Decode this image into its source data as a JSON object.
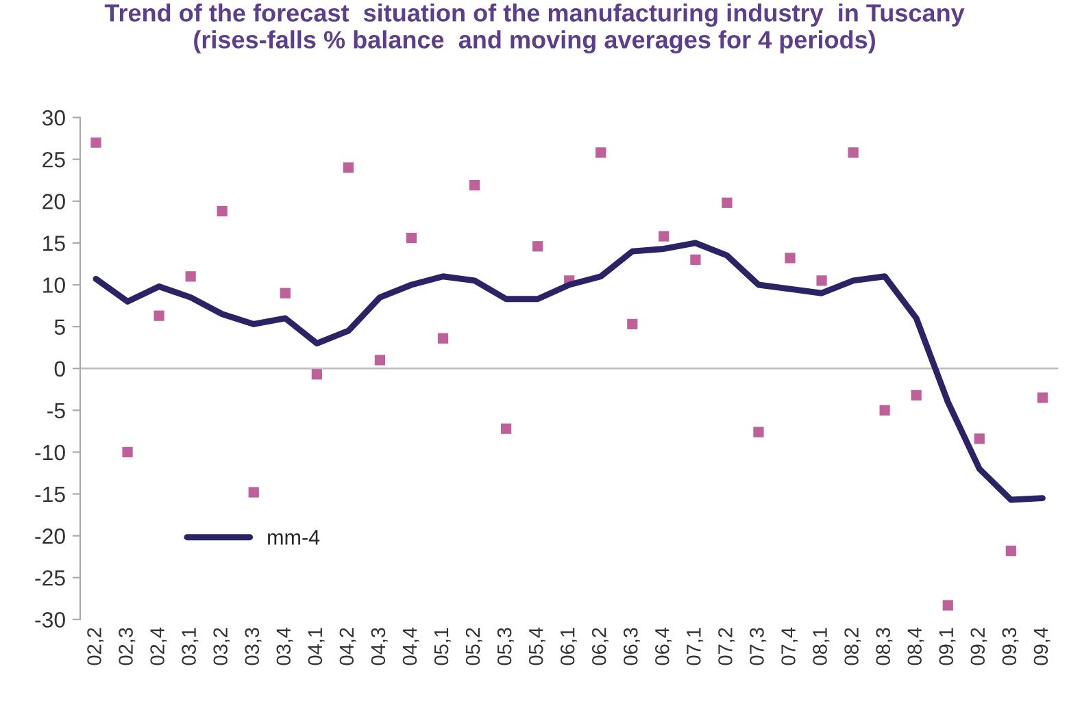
{
  "chart_data": {
    "type": "scatter",
    "title": "Trend of the forecast  situation of the manufacturing industry  in Tuscany\n(rises-falls % balance  and moving averages for 4 periods)",
    "categories": [
      "02,2",
      "02,3",
      "02,4",
      "03,1",
      "03,2",
      "03,3",
      "03,4",
      "04,1",
      "04,2",
      "04,3",
      "04,4",
      "05,1",
      "05,2",
      "05,3",
      "05,4",
      "06,1",
      "06,2",
      "06,3",
      "06,4",
      "07,1",
      "07,2",
      "07,3",
      "07,4",
      "08,1",
      "08,2",
      "08,3",
      "08,4",
      "09,1",
      "09,2",
      "09,3",
      "09,4"
    ],
    "series": [
      {
        "color": "#c0609a",
        "marker": "square",
        "values": [
          27,
          -10,
          6.3,
          11,
          18.8,
          -14.8,
          9,
          -0.7,
          24,
          1,
          15.6,
          3.6,
          21.9,
          -7.2,
          14.6,
          10.5,
          25.8,
          5.3,
          15.8,
          13,
          19.8,
          -7.6,
          13.2,
          10.5,
          25.8,
          -5,
          -3.2,
          -28.3,
          -8.4,
          -21.8,
          -3.5
        ]
      },
      {
        "type": "line",
        "name": "mm-4",
        "color": "#2a2366",
        "marker": "none",
        "values": [
          10.7,
          8,
          9.8,
          8.5,
          6.5,
          5.3,
          6,
          3,
          4.5,
          8.5,
          10,
          11,
          10.5,
          8.3,
          8.3,
          10,
          11,
          14,
          14.3,
          15,
          13.5,
          10,
          9.5,
          9,
          10.5,
          11,
          6,
          -4,
          -12,
          -15.7,
          -15.5
        ]
      }
    ],
    "ylim": [
      -30,
      30
    ],
    "yticks": [
      -30,
      -25,
      -20,
      -15,
      -10,
      -5,
      0,
      5,
      10,
      15,
      20,
      25,
      30
    ],
    "ref_lines": [
      {
        "axis": "y",
        "value": 0,
        "color": "#c0c0c0"
      }
    ],
    "grid": false,
    "legend": "bottom left"
  }
}
